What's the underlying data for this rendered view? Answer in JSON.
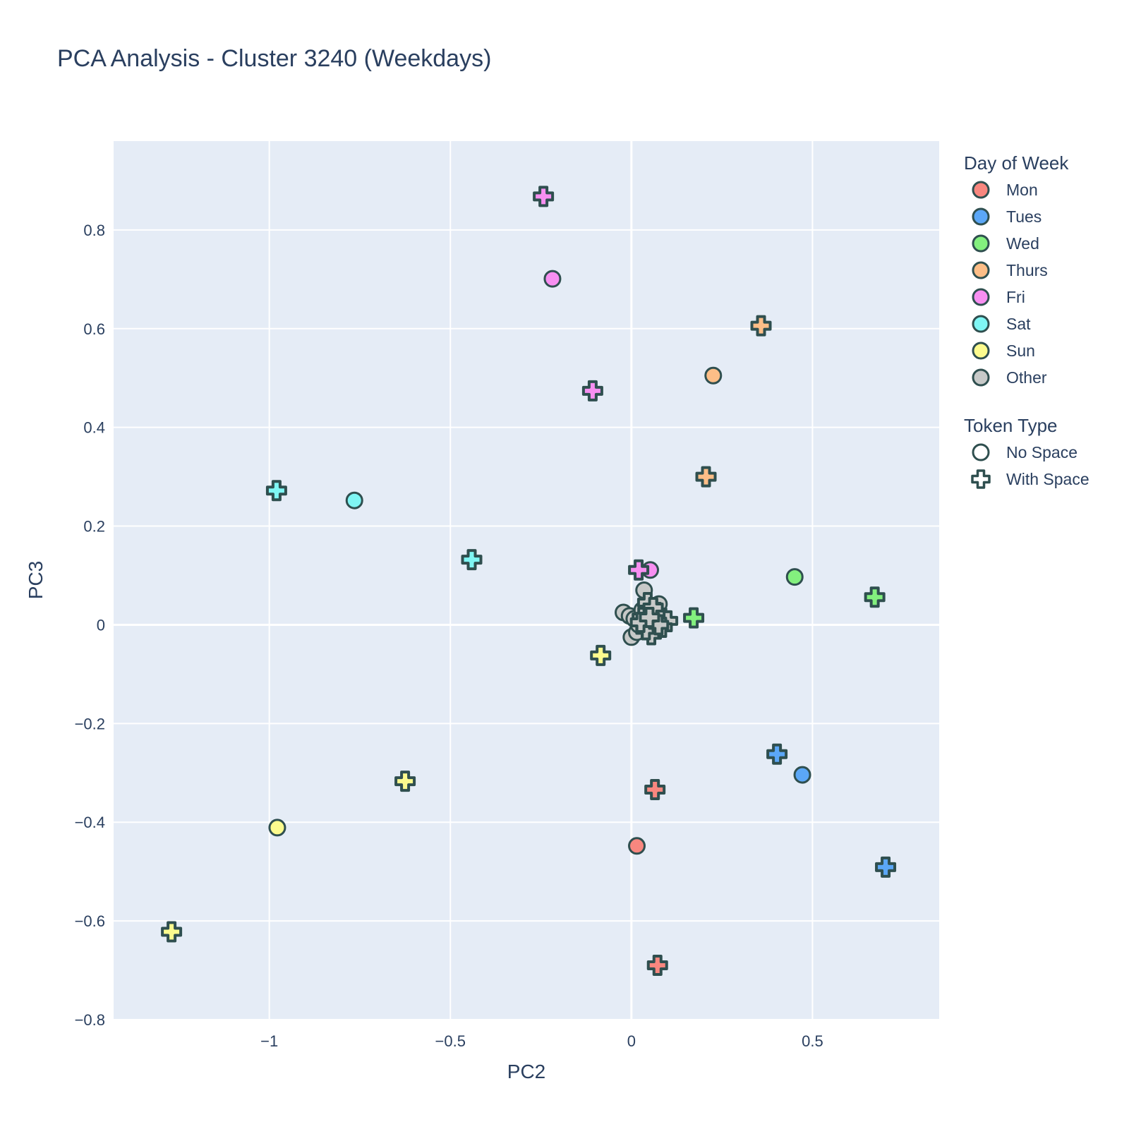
{
  "title": "PCA Analysis - Cluster 3240 (Weekdays)",
  "chart_data": {
    "type": "scatter",
    "title": "PCA Analysis - Cluster 3240 (Weekdays)",
    "xlabel": "PC2",
    "ylabel": "PC3",
    "xlim": [
      -1.43,
      0.85
    ],
    "ylim": [
      -0.8,
      0.98
    ],
    "xticks": [
      -1,
      -0.5,
      0,
      0.5
    ],
    "xtick_labels": [
      "−1",
      "−0.5",
      "0",
      "0.5"
    ],
    "yticks": [
      -0.8,
      -0.6,
      -0.4,
      -0.2,
      0,
      0.2,
      0.4,
      0.6,
      0.8
    ],
    "ytick_labels": [
      "−0.8",
      "−0.6",
      "−0.4",
      "−0.2",
      "0",
      "0.2",
      "0.4",
      "0.6",
      "0.8"
    ],
    "grid": true,
    "legend_position": "right",
    "marker_edge_color": "#2f4f4f",
    "plot_background": "#e5ecf6",
    "legend_groups": [
      {
        "title": "Day of Week",
        "items": [
          {
            "label": "Mon",
            "color": "#f8877f"
          },
          {
            "label": "Tues",
            "color": "#5ba7f7"
          },
          {
            "label": "Wed",
            "color": "#83f07e"
          },
          {
            "label": "Thurs",
            "color": "#fdbe87"
          },
          {
            "label": "Fri",
            "color": "#f78ff1"
          },
          {
            "label": "Sat",
            "color": "#7ff6f4"
          },
          {
            "label": "Sun",
            "color": "#fcfb8e"
          },
          {
            "label": "Other",
            "color": "#c7c9c8"
          }
        ]
      },
      {
        "title": "Token Type",
        "items": [
          {
            "label": "No Space",
            "symbol": "circle"
          },
          {
            "label": "With Space",
            "symbol": "cross"
          }
        ]
      }
    ],
    "series": [
      {
        "name": "Mon",
        "color": "#f8877f",
        "points": [
          {
            "x": 0.015,
            "y": -0.448,
            "symbol": "circle"
          },
          {
            "x": 0.065,
            "y": -0.334,
            "symbol": "cross"
          },
          {
            "x": 0.072,
            "y": -0.69,
            "symbol": "cross"
          }
        ]
      },
      {
        "name": "Tues",
        "color": "#5ba7f7",
        "points": [
          {
            "x": 0.472,
            "y": -0.304,
            "symbol": "circle"
          },
          {
            "x": 0.402,
            "y": -0.262,
            "symbol": "cross"
          },
          {
            "x": 0.702,
            "y": -0.491,
            "symbol": "cross"
          }
        ]
      },
      {
        "name": "Wed",
        "color": "#83f07e",
        "points": [
          {
            "x": 0.451,
            "y": 0.097,
            "symbol": "circle"
          },
          {
            "x": 0.172,
            "y": 0.014,
            "symbol": "cross"
          },
          {
            "x": 0.672,
            "y": 0.056,
            "symbol": "cross"
          }
        ]
      },
      {
        "name": "Thurs",
        "color": "#fdbe87",
        "points": [
          {
            "x": 0.226,
            "y": 0.505,
            "symbol": "circle"
          },
          {
            "x": 0.206,
            "y": 0.3,
            "symbol": "cross"
          },
          {
            "x": 0.358,
            "y": 0.606,
            "symbol": "cross"
          }
        ]
      },
      {
        "name": "Fri",
        "color": "#f78ff1",
        "points": [
          {
            "x": -0.218,
            "y": 0.701,
            "symbol": "circle"
          },
          {
            "x": 0.052,
            "y": 0.111,
            "symbol": "circle"
          },
          {
            "x": -0.107,
            "y": 0.474,
            "symbol": "cross"
          },
          {
            "x": -0.243,
            "y": 0.868,
            "symbol": "cross"
          },
          {
            "x": 0.02,
            "y": 0.111,
            "symbol": "cross"
          }
        ]
      },
      {
        "name": "Sat",
        "color": "#7ff6f4",
        "points": [
          {
            "x": -0.765,
            "y": 0.252,
            "symbol": "circle"
          },
          {
            "x": -0.441,
            "y": 0.132,
            "symbol": "cross"
          },
          {
            "x": -0.98,
            "y": 0.272,
            "symbol": "cross"
          }
        ]
      },
      {
        "name": "Sun",
        "color": "#fcfb8e",
        "points": [
          {
            "x": -0.978,
            "y": -0.411,
            "symbol": "circle"
          },
          {
            "x": -0.625,
            "y": -0.317,
            "symbol": "cross"
          },
          {
            "x": -0.085,
            "y": -0.062,
            "symbol": "cross"
          },
          {
            "x": -1.27,
            "y": -0.622,
            "symbol": "cross"
          }
        ]
      },
      {
        "name": "Other",
        "color": "#c7c9c8",
        "points": [
          {
            "x": 0.035,
            "y": 0.07,
            "symbol": "circle"
          },
          {
            "x": 0.076,
            "y": 0.042,
            "symbol": "circle"
          },
          {
            "x": -0.022,
            "y": 0.025,
            "symbol": "circle"
          },
          {
            "x": -0.005,
            "y": 0.018,
            "symbol": "circle"
          },
          {
            "x": 0.008,
            "y": 0.012,
            "symbol": "circle"
          },
          {
            "x": 0.09,
            "y": 0.005,
            "symbol": "circle"
          },
          {
            "x": 0.0,
            "y": -0.025,
            "symbol": "circle"
          },
          {
            "x": 0.015,
            "y": -0.015,
            "symbol": "circle"
          },
          {
            "x": 0.05,
            "y": -0.005,
            "symbol": "circle"
          },
          {
            "x": 0.03,
            "y": 0.03,
            "symbol": "circle"
          },
          {
            "x": 0.06,
            "y": 0.02,
            "symbol": "circle"
          },
          {
            "x": 0.08,
            "y": 0.012,
            "symbol": "circle"
          },
          {
            "x": 0.02,
            "y": 0.0,
            "symbol": "circle"
          },
          {
            "x": 0.045,
            "y": 0.045,
            "symbol": "cross"
          },
          {
            "x": 0.03,
            "y": 0.015,
            "symbol": "cross"
          },
          {
            "x": 0.055,
            "y": -0.02,
            "symbol": "cross"
          },
          {
            "x": 0.07,
            "y": 0.025,
            "symbol": "cross"
          },
          {
            "x": 0.1,
            "y": 0.008,
            "symbol": "cross"
          },
          {
            "x": 0.04,
            "y": -0.01,
            "symbol": "cross"
          },
          {
            "x": 0.085,
            "y": -0.005,
            "symbol": "cross"
          },
          {
            "x": 0.06,
            "y": 0.035,
            "symbol": "cross"
          },
          {
            "x": 0.025,
            "y": 0.005,
            "symbol": "cross"
          },
          {
            "x": 0.075,
            "y": 0.0,
            "symbol": "cross"
          },
          {
            "x": 0.05,
            "y": 0.015,
            "symbol": "cross"
          }
        ]
      }
    ]
  }
}
